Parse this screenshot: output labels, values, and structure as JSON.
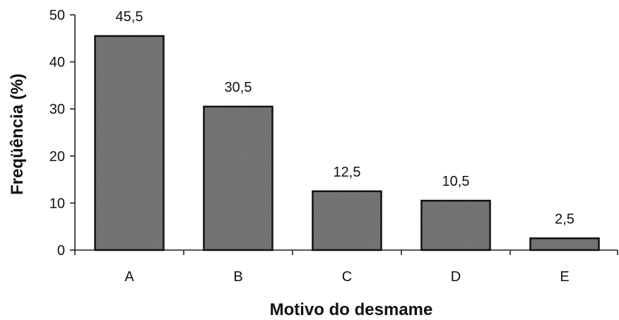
{
  "chart_data": {
    "type": "bar",
    "categories": [
      "A",
      "B",
      "C",
      "D",
      "E"
    ],
    "values": [
      45.5,
      30.5,
      12.5,
      10.5,
      2.5
    ],
    "value_labels": [
      "45,5",
      "30,5",
      "12,5",
      "10,5",
      "2,5"
    ],
    "title": "",
    "xlabel": "Motivo do desmame",
    "ylabel": "Freqüência (%)",
    "ylim": [
      0,
      50
    ],
    "yticks": [
      0,
      10,
      20,
      30,
      40,
      50
    ],
    "ytick_labels": [
      "0",
      "10",
      "20",
      "30",
      "40",
      "50"
    ],
    "grid": false,
    "legend": "none",
    "bar_color": "#6e6e6e",
    "bar_edge_color": "#111111"
  }
}
